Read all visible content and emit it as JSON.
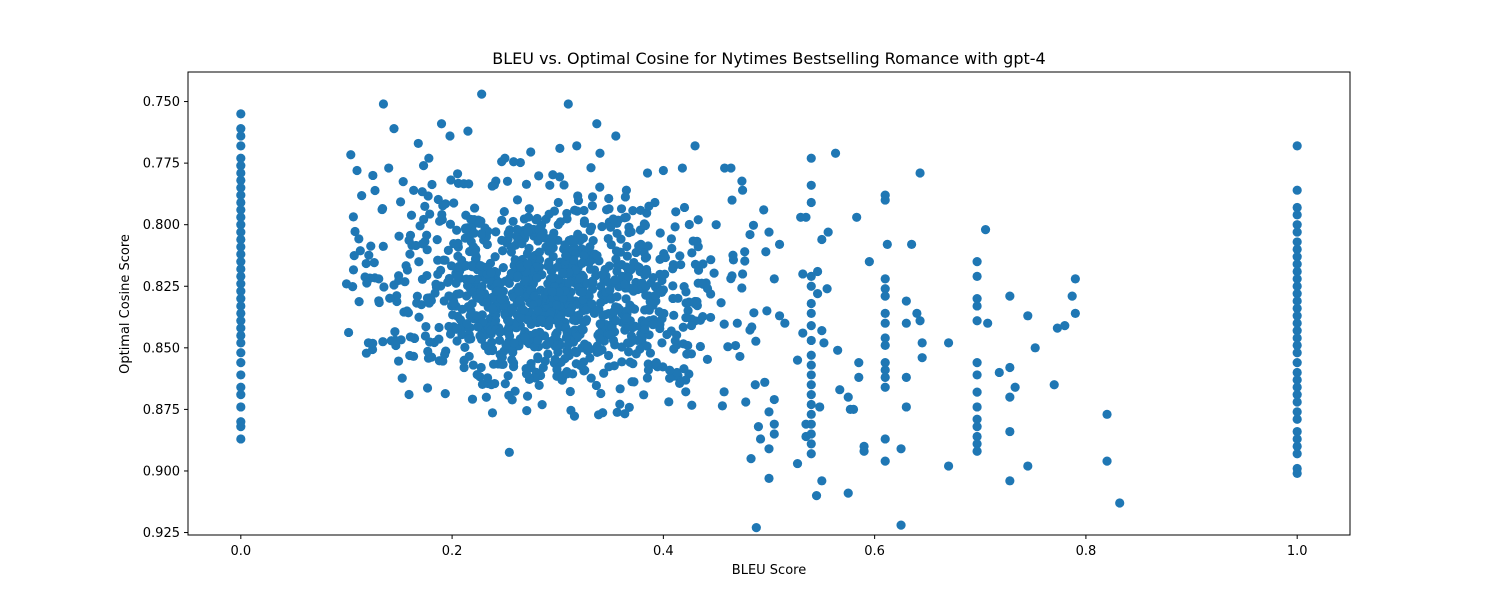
{
  "chart_data": {
    "type": "scatter",
    "title": "BLEU vs. Optimal Cosine for Nytimes Bestselling Romance with gpt-4",
    "xlabel": "BLEU Score",
    "ylabel": "Optimal Cosine Score",
    "xlim": [
      -0.05,
      1.05
    ],
    "ylim": [
      0.926,
      0.738
    ],
    "y_inverted": true,
    "xticks": [
      0.0,
      0.2,
      0.4,
      0.6,
      0.8,
      1.0
    ],
    "xtick_labels": [
      "0.0",
      "0.2",
      "0.4",
      "0.6",
      "0.8",
      "1.0"
    ],
    "yticks": [
      0.75,
      0.775,
      0.8,
      0.825,
      0.85,
      0.875,
      0.9,
      0.925
    ],
    "ytick_labels": [
      "0.750",
      "0.775",
      "0.800",
      "0.825",
      "0.850",
      "0.875",
      "0.900",
      "0.925"
    ],
    "grid": false,
    "marker_color": "#1f77b4",
    "series": [
      {
        "points": [
          [
            0.0,
            0.755
          ],
          [
            0.0,
            0.761
          ],
          [
            0.0,
            0.764
          ],
          [
            0.0,
            0.768
          ],
          [
            0.0,
            0.773
          ],
          [
            0.0,
            0.776
          ],
          [
            0.0,
            0.779
          ],
          [
            0.0,
            0.782
          ],
          [
            0.0,
            0.785
          ],
          [
            0.0,
            0.788
          ],
          [
            0.0,
            0.791
          ],
          [
            0.0,
            0.794
          ],
          [
            0.0,
            0.797
          ],
          [
            0.0,
            0.8
          ],
          [
            0.0,
            0.803
          ],
          [
            0.0,
            0.806
          ],
          [
            0.0,
            0.809
          ],
          [
            0.0,
            0.812
          ],
          [
            0.0,
            0.815
          ],
          [
            0.0,
            0.818
          ],
          [
            0.0,
            0.821
          ],
          [
            0.0,
            0.824
          ],
          [
            0.0,
            0.827
          ],
          [
            0.0,
            0.83
          ],
          [
            0.0,
            0.833
          ],
          [
            0.0,
            0.836
          ],
          [
            0.0,
            0.839
          ],
          [
            0.0,
            0.842
          ],
          [
            0.0,
            0.845
          ],
          [
            0.0,
            0.848
          ],
          [
            0.0,
            0.852
          ],
          [
            0.0,
            0.856
          ],
          [
            0.0,
            0.861
          ],
          [
            0.0,
            0.866
          ],
          [
            0.0,
            0.869
          ],
          [
            0.0,
            0.874
          ],
          [
            0.0,
            0.88
          ],
          [
            0.0,
            0.882
          ],
          [
            0.0,
            0.887
          ],
          [
            1.0,
            0.768
          ],
          [
            1.0,
            0.786
          ],
          [
            1.0,
            0.793
          ],
          [
            1.0,
            0.796
          ],
          [
            1.0,
            0.8
          ],
          [
            1.0,
            0.803
          ],
          [
            1.0,
            0.807
          ],
          [
            1.0,
            0.81
          ],
          [
            1.0,
            0.813
          ],
          [
            1.0,
            0.816
          ],
          [
            1.0,
            0.819
          ],
          [
            1.0,
            0.822
          ],
          [
            1.0,
            0.825
          ],
          [
            1.0,
            0.828
          ],
          [
            1.0,
            0.831
          ],
          [
            1.0,
            0.834
          ],
          [
            1.0,
            0.837
          ],
          [
            1.0,
            0.84
          ],
          [
            1.0,
            0.843
          ],
          [
            1.0,
            0.846
          ],
          [
            1.0,
            0.849
          ],
          [
            1.0,
            0.852
          ],
          [
            1.0,
            0.856
          ],
          [
            1.0,
            0.86
          ],
          [
            1.0,
            0.863
          ],
          [
            1.0,
            0.866
          ],
          [
            1.0,
            0.869
          ],
          [
            1.0,
            0.872
          ],
          [
            1.0,
            0.876
          ],
          [
            1.0,
            0.879
          ],
          [
            1.0,
            0.884
          ],
          [
            1.0,
            0.887
          ],
          [
            1.0,
            0.89
          ],
          [
            1.0,
            0.893
          ],
          [
            1.0,
            0.899
          ],
          [
            1.0,
            0.901
          ],
          [
            0.135,
            0.751
          ],
          [
            0.228,
            0.747
          ],
          [
            0.31,
            0.751
          ],
          [
            0.337,
            0.759
          ],
          [
            0.355,
            0.764
          ],
          [
            0.19,
            0.759
          ],
          [
            0.215,
            0.762
          ],
          [
            0.145,
            0.761
          ],
          [
            0.168,
            0.767
          ],
          [
            0.198,
            0.764
          ],
          [
            0.318,
            0.768
          ],
          [
            0.302,
            0.769
          ],
          [
            0.34,
            0.771
          ],
          [
            0.43,
            0.768
          ],
          [
            0.25,
            0.773
          ],
          [
            0.11,
            0.778
          ],
          [
            0.125,
            0.78
          ],
          [
            0.14,
            0.777
          ],
          [
            0.173,
            0.776
          ],
          [
            0.178,
            0.773
          ],
          [
            0.563,
            0.771
          ],
          [
            0.54,
            0.773
          ],
          [
            0.418,
            0.777
          ],
          [
            0.458,
            0.777
          ],
          [
            0.464,
            0.777
          ],
          [
            0.643,
            0.779
          ],
          [
            0.385,
            0.779
          ],
          [
            0.4,
            0.778
          ],
          [
            0.61,
            0.788
          ],
          [
            0.61,
            0.79
          ],
          [
            0.54,
            0.784
          ],
          [
            0.54,
            0.791
          ],
          [
            0.475,
            0.786
          ],
          [
            0.495,
            0.794
          ],
          [
            0.705,
            0.802
          ],
          [
            0.612,
            0.808
          ],
          [
            0.635,
            0.808
          ],
          [
            0.55,
            0.806
          ],
          [
            0.583,
            0.797
          ],
          [
            0.556,
            0.803
          ],
          [
            0.5,
            0.803
          ],
          [
            0.535,
            0.797
          ],
          [
            0.53,
            0.797
          ],
          [
            0.51,
            0.808
          ],
          [
            0.497,
            0.811
          ],
          [
            0.465,
            0.79
          ],
          [
            0.42,
            0.793
          ],
          [
            0.433,
            0.798
          ],
          [
            0.45,
            0.8
          ],
          [
            0.392,
            0.791
          ],
          [
            0.365,
            0.786
          ],
          [
            0.697,
            0.815
          ],
          [
            0.697,
            0.821
          ],
          [
            0.697,
            0.83
          ],
          [
            0.697,
            0.833
          ],
          [
            0.697,
            0.839
          ],
          [
            0.697,
            0.856
          ],
          [
            0.697,
            0.861
          ],
          [
            0.697,
            0.868
          ],
          [
            0.697,
            0.874
          ],
          [
            0.697,
            0.879
          ],
          [
            0.697,
            0.882
          ],
          [
            0.697,
            0.886
          ],
          [
            0.697,
            0.889
          ],
          [
            0.697,
            0.892
          ],
          [
            0.707,
            0.84
          ],
          [
            0.718,
            0.86
          ],
          [
            0.728,
            0.829
          ],
          [
            0.728,
            0.858
          ],
          [
            0.728,
            0.87
          ],
          [
            0.733,
            0.866
          ],
          [
            0.728,
            0.884
          ],
          [
            0.728,
            0.904
          ],
          [
            0.745,
            0.837
          ],
          [
            0.745,
            0.898
          ],
          [
            0.752,
            0.85
          ],
          [
            0.77,
            0.865
          ],
          [
            0.773,
            0.842
          ],
          [
            0.78,
            0.841
          ],
          [
            0.79,
            0.822
          ],
          [
            0.787,
            0.829
          ],
          [
            0.79,
            0.836
          ],
          [
            0.82,
            0.877
          ],
          [
            0.82,
            0.896
          ],
          [
            0.832,
            0.913
          ],
          [
            0.67,
            0.898
          ],
          [
            0.67,
            0.848
          ],
          [
            0.61,
            0.822
          ],
          [
            0.61,
            0.826
          ],
          [
            0.61,
            0.829
          ],
          [
            0.61,
            0.836
          ],
          [
            0.61,
            0.84
          ],
          [
            0.61,
            0.846
          ],
          [
            0.61,
            0.849
          ],
          [
            0.61,
            0.856
          ],
          [
            0.61,
            0.859
          ],
          [
            0.61,
            0.862
          ],
          [
            0.61,
            0.866
          ],
          [
            0.61,
            0.887
          ],
          [
            0.61,
            0.896
          ],
          [
            0.595,
            0.815
          ],
          [
            0.59,
            0.89
          ],
          [
            0.59,
            0.892
          ],
          [
            0.625,
            0.891
          ],
          [
            0.63,
            0.831
          ],
          [
            0.63,
            0.84
          ],
          [
            0.63,
            0.862
          ],
          [
            0.63,
            0.874
          ],
          [
            0.64,
            0.836
          ],
          [
            0.643,
            0.839
          ],
          [
            0.645,
            0.848
          ],
          [
            0.645,
            0.854
          ],
          [
            0.625,
            0.922
          ],
          [
            0.577,
            0.875
          ],
          [
            0.58,
            0.875
          ],
          [
            0.585,
            0.856
          ],
          [
            0.585,
            0.862
          ],
          [
            0.575,
            0.87
          ],
          [
            0.575,
            0.909
          ],
          [
            0.567,
            0.867
          ],
          [
            0.565,
            0.851
          ],
          [
            0.54,
            0.821
          ],
          [
            0.54,
            0.825
          ],
          [
            0.54,
            0.832
          ],
          [
            0.54,
            0.836
          ],
          [
            0.54,
            0.841
          ],
          [
            0.54,
            0.847
          ],
          [
            0.54,
            0.853
          ],
          [
            0.54,
            0.857
          ],
          [
            0.54,
            0.861
          ],
          [
            0.54,
            0.865
          ],
          [
            0.54,
            0.869
          ],
          [
            0.54,
            0.873
          ],
          [
            0.54,
            0.877
          ],
          [
            0.54,
            0.881
          ],
          [
            0.54,
            0.885
          ],
          [
            0.54,
            0.889
          ],
          [
            0.54,
            0.893
          ],
          [
            0.546,
            0.819
          ],
          [
            0.546,
            0.828
          ],
          [
            0.548,
            0.874
          ],
          [
            0.55,
            0.904
          ],
          [
            0.545,
            0.91
          ],
          [
            0.532,
            0.82
          ],
          [
            0.532,
            0.844
          ],
          [
            0.535,
            0.881
          ],
          [
            0.535,
            0.886
          ],
          [
            0.527,
            0.855
          ],
          [
            0.527,
            0.897
          ],
          [
            0.555,
            0.826
          ],
          [
            0.55,
            0.843
          ],
          [
            0.552,
            0.848
          ],
          [
            0.488,
            0.923
          ],
          [
            0.5,
            0.903
          ],
          [
            0.498,
            0.835
          ],
          [
            0.505,
            0.822
          ],
          [
            0.51,
            0.837
          ],
          [
            0.515,
            0.84
          ],
          [
            0.496,
            0.864
          ],
          [
            0.5,
            0.876
          ],
          [
            0.505,
            0.871
          ],
          [
            0.505,
            0.881
          ],
          [
            0.49,
            0.882
          ],
          [
            0.492,
            0.887
          ],
          [
            0.483,
            0.895
          ],
          [
            0.487,
            0.865
          ],
          [
            0.478,
            0.872
          ],
          [
            0.505,
            0.885
          ],
          [
            0.5,
            0.891
          ],
          [
            0.47,
            0.84
          ],
          [
            0.475,
            0.82
          ],
          [
            0.477,
            0.811
          ],
          [
            0.482,
            0.804
          ]
        ],
        "cluster": {
          "x_center": 0.29,
          "x_spread": 0.082,
          "x_min": 0.098,
          "x_max": 0.49,
          "y_center": 0.828,
          "y_spread": 0.02,
          "y_min": 0.77,
          "y_max": 0.905,
          "count": 1150
        }
      }
    ]
  }
}
